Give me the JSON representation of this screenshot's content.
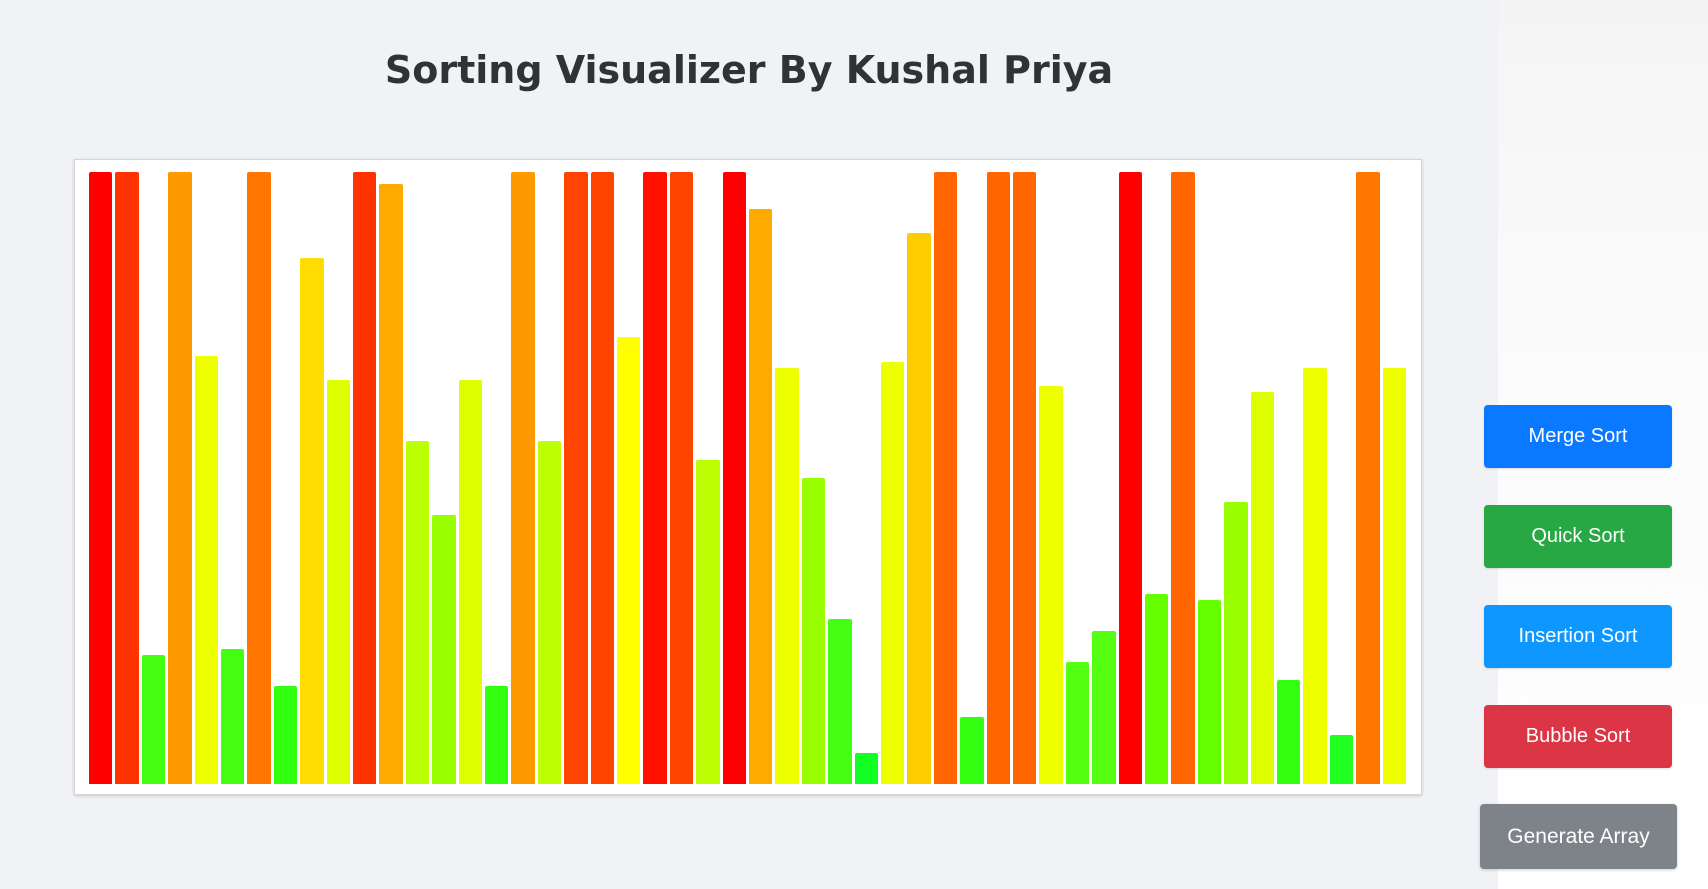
{
  "page": {
    "title": "Sorting Visualizer By Kushal Priya"
  },
  "controls": {
    "merge_sort": "Merge Sort",
    "quick_sort": "Quick Sort",
    "insertion_sort": "Insertion Sort",
    "bubble_sort": "Bubble Sort",
    "generate_array": "Generate Array"
  },
  "colors": {
    "merge_sort": "#0a78ff",
    "quick_sort": "#28a745",
    "insertion_sort": "#0d97ff",
    "bubble_sort": "#dc3545",
    "generate_array": "#7e8389"
  },
  "chart_data": {
    "type": "bar",
    "color_scale": "value mapped from green (low) through yellow to red (high)",
    "ylim": [
      0,
      100
    ],
    "values": [
      100,
      100,
      21,
      100,
      70,
      22,
      100,
      16,
      86,
      66,
      100,
      98,
      56,
      44,
      66,
      16,
      100,
      56,
      100,
      100,
      73,
      100,
      100,
      53,
      100,
      94,
      68,
      50,
      27,
      5,
      69,
      90,
      100,
      11,
      100,
      100,
      65,
      20,
      25,
      100,
      31,
      100,
      30,
      46,
      64,
      17,
      68,
      8,
      100,
      68
    ],
    "bar_colors": [
      "#ff0000",
      "#ff3300",
      "#44ff11",
      "#ff9900",
      "#eeff00",
      "#44ff11",
      "#ff7700",
      "#33ff11",
      "#ffdd00",
      "#ddff00",
      "#ff3300",
      "#ffaa00",
      "#bbff00",
      "#99ff00",
      "#ddff00",
      "#33ff11",
      "#ff9900",
      "#bbff00",
      "#ff4400",
      "#ff4400",
      "#ffff00",
      "#ff1100",
      "#ff4400",
      "#bbff00",
      "#ff0000",
      "#ffaa00",
      "#eeff00",
      "#99ff00",
      "#44ff11",
      "#11ff22",
      "#eeff00",
      "#ffcc00",
      "#ff6600",
      "#33ff11",
      "#ff6600",
      "#ff6600",
      "#eeff00",
      "#55ff11",
      "#55ff11",
      "#ff0000",
      "#66ff00",
      "#ff6600",
      "#66ff00",
      "#99ff00",
      "#ddff00",
      "#33ff11",
      "#eeff00",
      "#22ff22",
      "#ff7700",
      "#eeff00"
    ]
  }
}
